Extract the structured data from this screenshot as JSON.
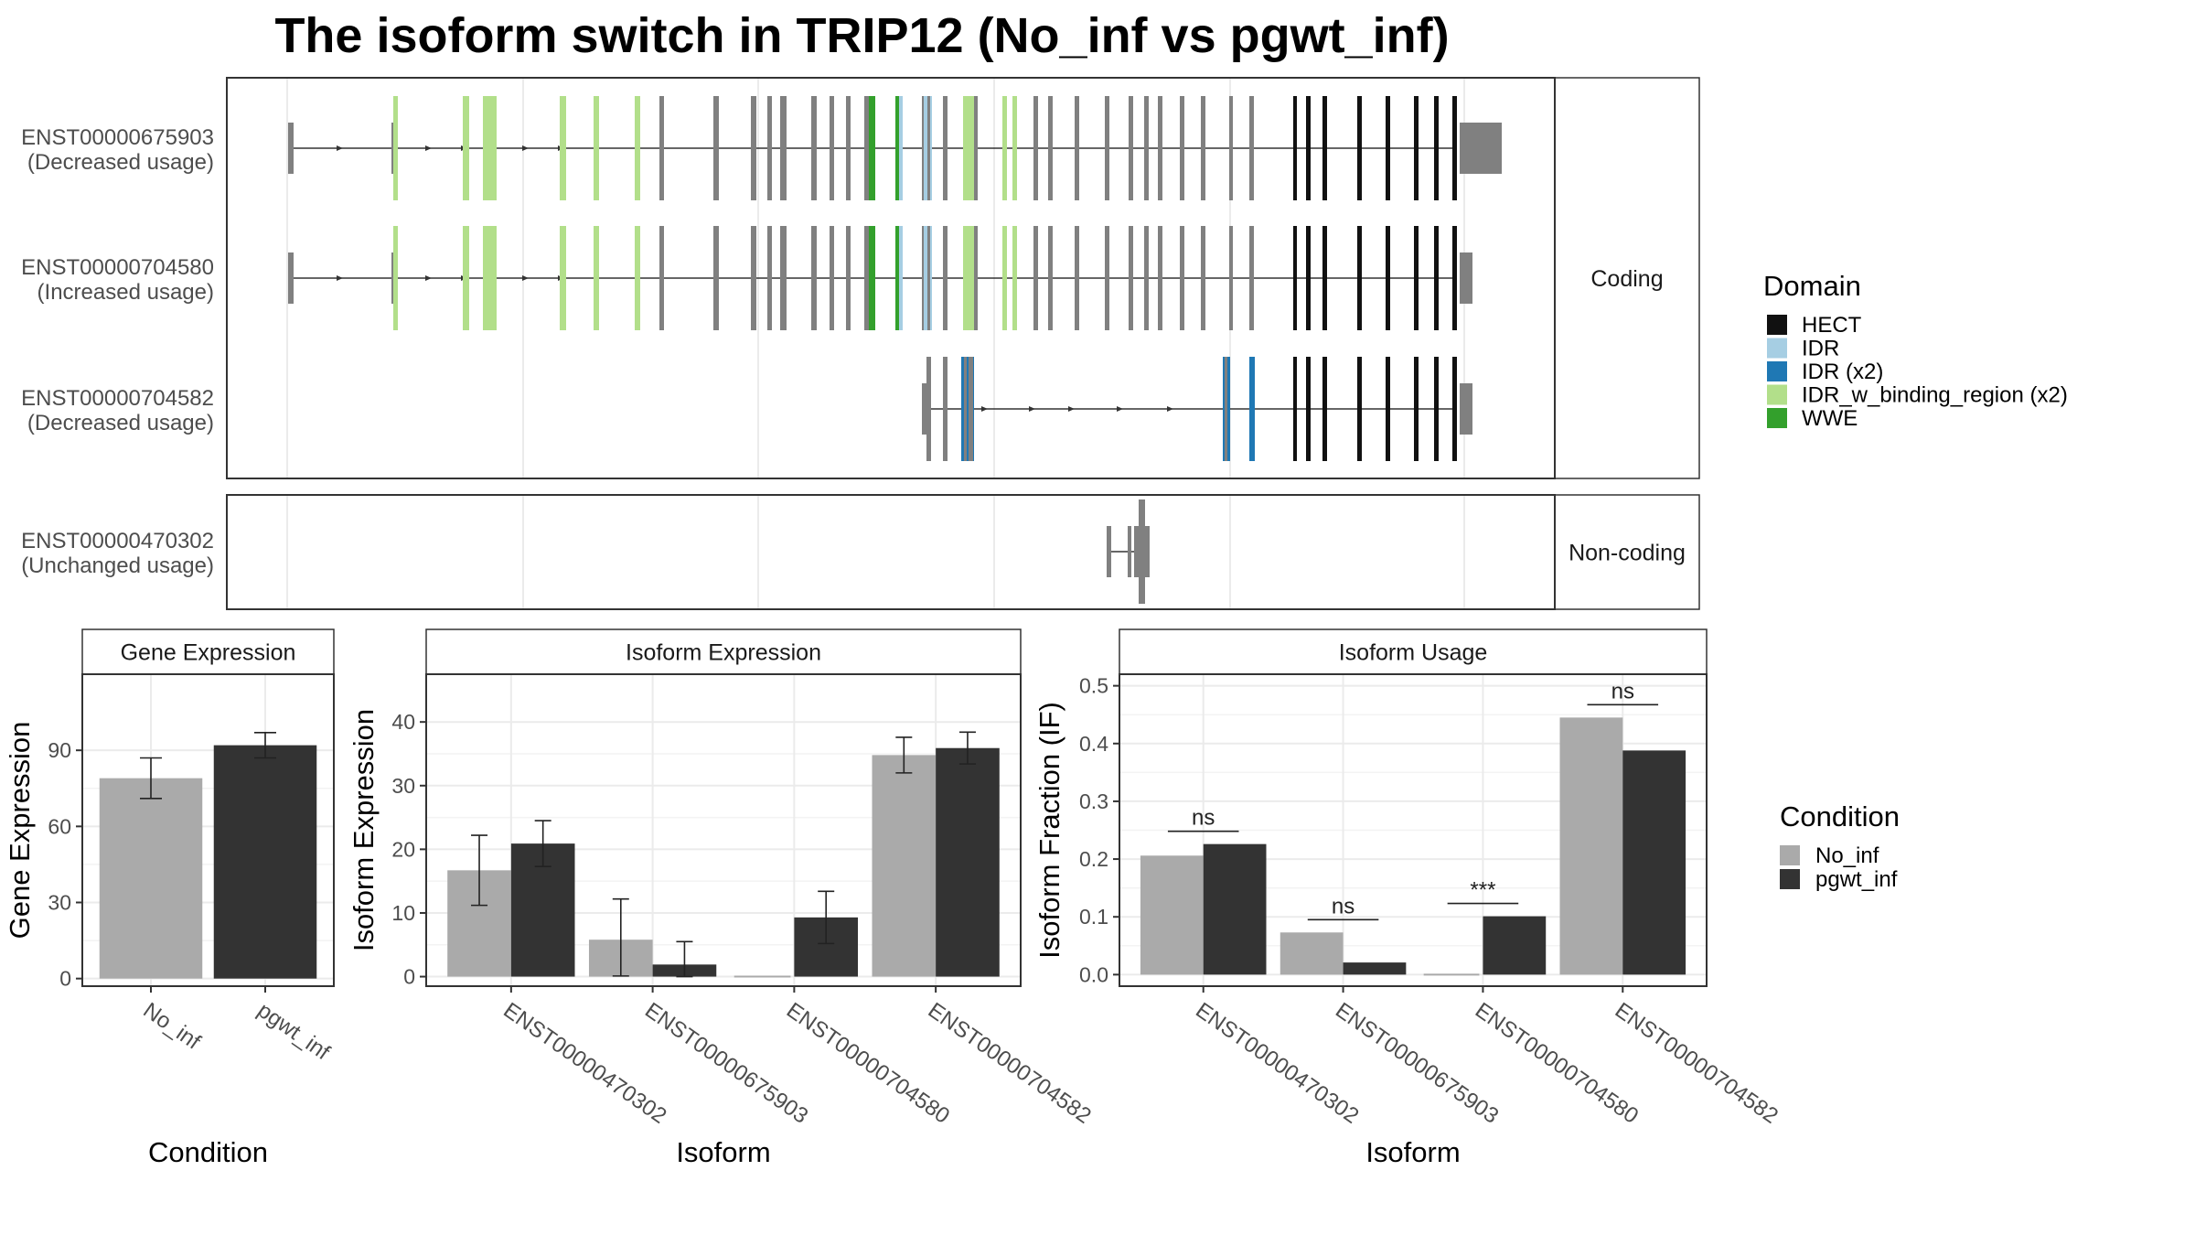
{
  "title": "The isoform switch in TRIP12 (No_inf vs pgwt_inf)",
  "colors": {
    "HECT": "#111111",
    "IDR": "#a6cee3",
    "IDR (x2)": "#1f78b4",
    "IDR_w_binding_region (x2)": "#b2df8a",
    "WWE": "#33a02c",
    "none": "#808080",
    "No_inf": "#aaaaaa",
    "pgwt_inf": "#333333"
  },
  "transcript_panel": {
    "groups": [
      {
        "label": "Coding",
        "transcripts": [
          {
            "id": "ENST00000675903",
            "usage": "(Decreased usage)"
          },
          {
            "id": "ENST00000704580",
            "usage": "(Increased usage)"
          },
          {
            "id": "ENST00000704582",
            "usage": "(Decreased usage)"
          }
        ]
      },
      {
        "label": "Non-coding",
        "transcripts": [
          {
            "id": "ENST00000470302",
            "usage": "(Unchanged usage)"
          }
        ]
      }
    ]
  },
  "legend_domain": {
    "title": "Domain",
    "items": [
      "HECT",
      "IDR",
      "IDR (x2)",
      "IDR_w_binding_region (x2)",
      "WWE"
    ]
  },
  "legend_condition": {
    "title": "Condition",
    "items": [
      "No_inf",
      "pgwt_inf"
    ]
  },
  "chart_data": [
    {
      "type": "bar",
      "title": "Gene Expression",
      "xlabel": "Condition",
      "ylabel": "Gene Expression",
      "categories": [
        "No_inf",
        "pgwt_inf"
      ],
      "values": [
        79,
        92
      ],
      "error": [
        [
          71,
          87
        ],
        [
          87,
          97
        ]
      ],
      "ylim": [
        -3,
        120
      ],
      "yticks": [
        0,
        30,
        60,
        90
      ]
    },
    {
      "type": "bar",
      "title": "Isoform Expression",
      "xlabel": "Isoform",
      "ylabel": "Isoform Expression",
      "categories": [
        "ENST00000470302",
        "ENST00000675903",
        "ENST00000704580",
        "ENST00000704582"
      ],
      "series": [
        {
          "name": "No_inf",
          "values": [
            16.7,
            5.8,
            0,
            34.8
          ],
          "error": [
            [
              11.2,
              22.2
            ],
            [
              0.1,
              12.2
            ],
            [
              0,
              0
            ],
            [
              32.0,
              37.6
            ]
          ]
        },
        {
          "name": "pgwt_inf",
          "values": [
            20.9,
            1.9,
            9.3,
            35.9
          ],
          "error": [
            [
              17.3,
              24.5
            ],
            [
              0,
              5.5
            ],
            [
              5.2,
              13.4
            ],
            [
              33.4,
              38.4
            ]
          ]
        }
      ],
      "ylim": [
        -1.5,
        47.5
      ],
      "yticks": [
        0,
        10,
        20,
        30,
        40
      ]
    },
    {
      "type": "bar",
      "title": "Isoform Usage",
      "xlabel": "Isoform",
      "ylabel": "Isoform Fraction (IF)",
      "categories": [
        "ENST00000470302",
        "ENST00000675903",
        "ENST00000704580",
        "ENST00000704582"
      ],
      "series": [
        {
          "name": "No_inf",
          "values": [
            0.206,
            0.073,
            0.0,
            0.445
          ]
        },
        {
          "name": "pgwt_inf",
          "values": [
            0.226,
            0.021,
            0.101,
            0.388
          ]
        }
      ],
      "significance": [
        "ns",
        "ns",
        "***",
        "ns"
      ],
      "ylim": [
        -0.02,
        0.52
      ],
      "yticks": [
        0.0,
        0.1,
        0.2,
        0.3,
        0.4,
        0.5
      ]
    }
  ]
}
